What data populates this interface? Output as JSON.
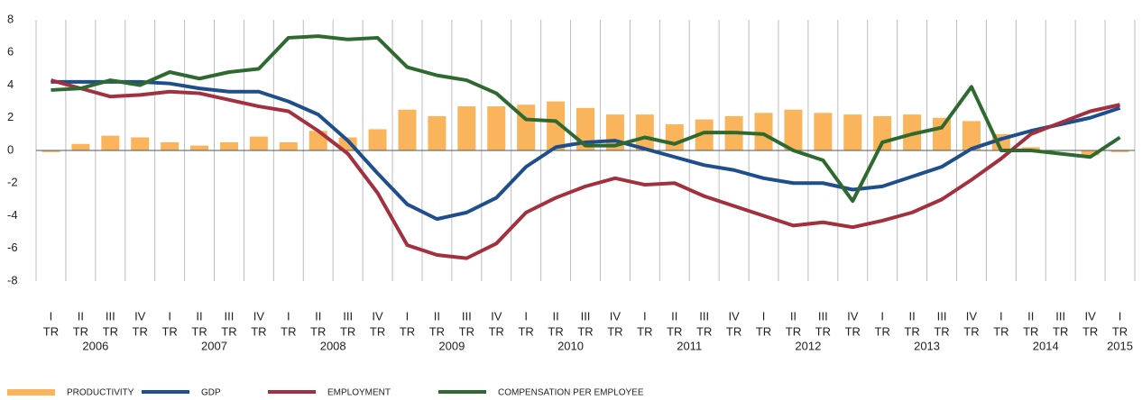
{
  "chart_data": {
    "type": "combo",
    "categories": [
      "I",
      "II",
      "III",
      "IV",
      "I",
      "II",
      "III",
      "IV",
      "I",
      "II",
      "III",
      "IV",
      "I",
      "II",
      "III",
      "IV",
      "I",
      "II",
      "III",
      "IV",
      "I",
      "II",
      "III",
      "IV",
      "I",
      "II",
      "III",
      "IV",
      "I",
      "II",
      "III",
      "IV",
      "I",
      "II",
      "III",
      "IV",
      "I"
    ],
    "category_suffix": "TR",
    "years": [
      "2006",
      "2007",
      "2008",
      "2009",
      "2010",
      "2011",
      "2012",
      "2013",
      "2014",
      "2015"
    ],
    "ylim": [
      -8,
      8
    ],
    "yticks": [
      -8,
      -6,
      -4,
      -2,
      0,
      2,
      4,
      6,
      8
    ],
    "series": [
      {
        "name": "PRODUCTIVITY",
        "kind": "bar",
        "color": "#f9b45c",
        "values": [
          -0.1,
          0.4,
          0.9,
          0.8,
          0.5,
          0.3,
          0.5,
          0.85,
          0.5,
          1.2,
          0.8,
          1.3,
          2.5,
          2.1,
          2.7,
          2.7,
          2.8,
          3.0,
          2.6,
          2.2,
          2.2,
          1.6,
          1.9,
          2.1,
          2.3,
          2.5,
          2.3,
          2.2,
          2.1,
          2.2,
          2.0,
          1.8,
          1.0,
          0.2,
          0.0,
          -0.3,
          -0.1
        ]
      },
      {
        "name": "GDP",
        "kind": "line",
        "color": "#1f4e8c",
        "values": [
          4.2,
          4.2,
          4.2,
          4.2,
          4.1,
          3.8,
          3.6,
          3.6,
          3.0,
          2.2,
          0.6,
          -1.4,
          -3.3,
          -4.2,
          -3.8,
          -2.9,
          -1.0,
          0.2,
          0.5,
          0.6,
          0.1,
          -0.4,
          -0.9,
          -1.2,
          -1.7,
          -2.0,
          -2.0,
          -2.4,
          -2.2,
          -1.6,
          -1.0,
          0.1,
          0.7,
          1.2,
          1.6,
          2.0,
          2.6
        ]
      },
      {
        "name": "EMPLOYMENT",
        "kind": "line",
        "color": "#a3303f",
        "values": [
          4.3,
          3.8,
          3.3,
          3.4,
          3.6,
          3.5,
          3.1,
          2.7,
          2.4,
          1.2,
          -0.2,
          -2.6,
          -5.8,
          -6.4,
          -6.6,
          -5.7,
          -3.8,
          -2.9,
          -2.2,
          -1.7,
          -2.1,
          -2.0,
          -2.8,
          -3.4,
          -4.0,
          -4.6,
          -4.4,
          -4.7,
          -4.3,
          -3.8,
          -3.0,
          -1.8,
          -0.5,
          1.0,
          1.7,
          2.4,
          2.8
        ]
      },
      {
        "name": "COMPENSATION PER EMPLOYEE",
        "kind": "line",
        "color": "#2e6a2f",
        "values": [
          3.7,
          3.8,
          4.3,
          4.0,
          4.8,
          4.4,
          4.8,
          5.0,
          6.9,
          7.0,
          6.8,
          6.9,
          5.1,
          4.6,
          4.3,
          3.5,
          1.9,
          1.8,
          0.3,
          0.3,
          0.8,
          0.4,
          1.1,
          1.1,
          1.0,
          0.0,
          -0.6,
          -3.1,
          0.5,
          1.0,
          1.4,
          3.9,
          0.0,
          0.0,
          -0.2,
          -0.4,
          0.8
        ]
      }
    ]
  }
}
